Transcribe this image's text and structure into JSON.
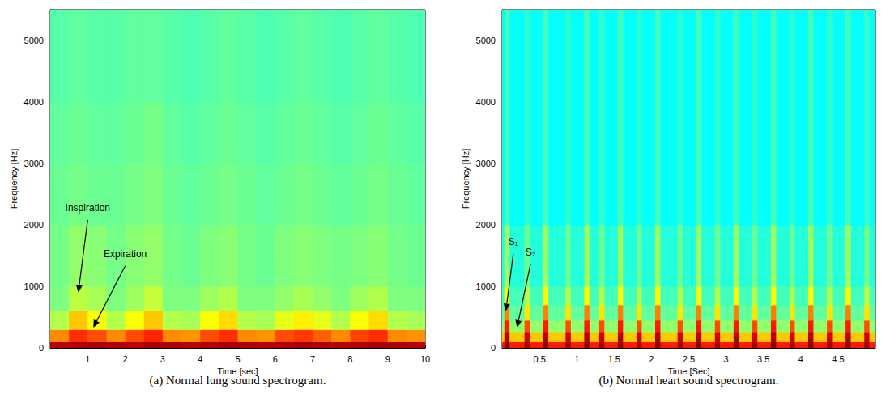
{
  "chart_data": [
    {
      "type": "heatmap",
      "title": "(a) Normal lung sound spectrogram.",
      "x_label": "Time [sec]",
      "y_label": "Frequency [Hz]",
      "xlim": [
        0,
        10
      ],
      "xticks": [
        1,
        2,
        3,
        4,
        5,
        6,
        7,
        8,
        9,
        10
      ],
      "ylim": [
        0,
        5500
      ],
      "yticks": [
        0,
        1000,
        2000,
        3000,
        4000,
        5000
      ],
      "grid": false,
      "clim": [
        0,
        100
      ],
      "x_bins": [
        0,
        0.5,
        1,
        1.5,
        2,
        2.5,
        3,
        3.5,
        4,
        4.5,
        5,
        5.5,
        6,
        6.5,
        7,
        7.5,
        8,
        8.5,
        9,
        9.5,
        10
      ],
      "y_bins": [
        0,
        100,
        300,
        600,
        1000,
        2000,
        3000,
        4000,
        5500
      ],
      "cells": [
        [
          94,
          95,
          96,
          95,
          94,
          96,
          95,
          94,
          95,
          96,
          95,
          94,
          95,
          96,
          95,
          94,
          95,
          96,
          95,
          94
        ],
        [
          74,
          83,
          80,
          74,
          80,
          84,
          74,
          73,
          80,
          83,
          74,
          73,
          80,
          82,
          78,
          74,
          81,
          83,
          74,
          73
        ],
        [
          55,
          68,
          62,
          55,
          62,
          68,
          55,
          54,
          62,
          66,
          55,
          54,
          60,
          64,
          60,
          55,
          62,
          66,
          55,
          54
        ],
        [
          50,
          56,
          54,
          50,
          53,
          57,
          50,
          50,
          53,
          55,
          50,
          50,
          52,
          54,
          52,
          50,
          53,
          55,
          50,
          50
        ],
        [
          49,
          52,
          51,
          49,
          51,
          52,
          49,
          48,
          50,
          51,
          49,
          48,
          50,
          51,
          50,
          49,
          50,
          51,
          49,
          48
        ],
        [
          48,
          49,
          48,
          48,
          49,
          50,
          48,
          47,
          48,
          49,
          48,
          47,
          48,
          49,
          48,
          47,
          48,
          49,
          48,
          47
        ],
        [
          47,
          48,
          47,
          47,
          48,
          49,
          47,
          46,
          47,
          48,
          47,
          46,
          47,
          48,
          47,
          46,
          47,
          48,
          47,
          46
        ],
        [
          46,
          47,
          46,
          46,
          47,
          47,
          46,
          45,
          46,
          47,
          46,
          45,
          46,
          47,
          46,
          45,
          46,
          47,
          46,
          45
        ]
      ],
      "annotations": [
        {
          "text": "Inspiration",
          "x": 1.0,
          "y": 2200,
          "arrow_x": 0.75,
          "arrow_y": 900
        },
        {
          "text": "Expiration",
          "x": 2.0,
          "y": 1450,
          "arrow_x": 1.15,
          "arrow_y": 330
        }
      ]
    },
    {
      "type": "heatmap",
      "title": "(b) Normal heart sound spectrogram.",
      "x_label": "Time [Sec]",
      "y_label": "Frequency [Hz]",
      "xlim": [
        0,
        5
      ],
      "xticks": [
        0.5,
        1,
        1.5,
        2,
        2.5,
        3,
        3.5,
        4,
        4.5
      ],
      "ylim": [
        0,
        5500
      ],
      "yticks": [
        0,
        1000,
        2000,
        3000,
        4000,
        5000
      ],
      "grid": false,
      "clim": [
        0,
        100
      ],
      "x_bins": [
        0,
        0.03,
        0.1,
        0.3,
        0.37,
        0.55,
        0.62,
        0.85,
        0.92,
        1.1,
        1.17,
        1.3,
        1.37,
        1.55,
        1.62,
        1.8,
        1.87,
        2.05,
        2.12,
        2.35,
        2.42,
        2.6,
        2.67,
        2.85,
        2.92,
        3.1,
        3.17,
        3.35,
        3.42,
        3.6,
        3.67,
        3.85,
        3.92,
        4.1,
        4.17,
        4.35,
        4.42,
        4.6,
        4.67,
        4.85,
        4.92,
        5.0
      ],
      "y_bins": [
        0,
        100,
        250,
        450,
        700,
        1000,
        2000,
        5500
      ],
      "cells": [
        [
          85,
          98,
          85,
          96,
          85,
          98,
          85,
          96,
          85,
          98,
          85,
          96,
          85,
          98,
          85,
          96,
          85,
          98,
          85,
          96,
          85,
          98,
          85,
          96,
          85,
          98,
          85,
          96,
          85,
          98,
          85,
          96,
          85,
          98,
          85,
          96,
          85,
          98,
          85,
          96,
          85
        ],
        [
          68,
          95,
          68,
          92,
          68,
          95,
          68,
          92,
          68,
          95,
          68,
          92,
          68,
          95,
          68,
          92,
          68,
          95,
          68,
          92,
          68,
          95,
          68,
          92,
          68,
          95,
          68,
          92,
          68,
          95,
          68,
          92,
          68,
          95,
          68,
          92,
          68,
          95,
          68,
          92,
          68
        ],
        [
          52,
          85,
          52,
          80,
          52,
          85,
          52,
          80,
          52,
          85,
          52,
          80,
          52,
          85,
          52,
          80,
          52,
          85,
          52,
          80,
          52,
          85,
          52,
          80,
          52,
          85,
          52,
          80,
          52,
          85,
          52,
          80,
          52,
          85,
          52,
          80,
          52,
          85,
          52,
          80,
          52
        ],
        [
          47,
          75,
          47,
          65,
          47,
          75,
          47,
          65,
          47,
          75,
          47,
          65,
          47,
          75,
          47,
          65,
          47,
          75,
          47,
          65,
          47,
          75,
          47,
          65,
          47,
          75,
          47,
          65,
          47,
          75,
          47,
          65,
          47,
          75,
          47,
          65,
          47,
          75,
          47,
          65,
          47
        ],
        [
          44,
          63,
          44,
          55,
          44,
          63,
          44,
          55,
          44,
          63,
          44,
          55,
          44,
          63,
          44,
          55,
          44,
          63,
          44,
          55,
          44,
          63,
          44,
          55,
          44,
          63,
          44,
          55,
          44,
          63,
          44,
          55,
          44,
          63,
          44,
          55,
          44,
          63,
          44,
          55,
          44
        ],
        [
          41,
          53,
          41,
          48,
          41,
          53,
          41,
          48,
          41,
          53,
          41,
          48,
          41,
          53,
          41,
          48,
          41,
          53,
          41,
          48,
          41,
          53,
          41,
          48,
          41,
          53,
          41,
          48,
          41,
          53,
          41,
          48,
          41,
          53,
          41,
          48,
          41,
          53,
          41,
          48,
          41
        ],
        [
          38,
          44,
          38,
          42,
          38,
          44,
          38,
          42,
          38,
          44,
          38,
          42,
          38,
          44,
          38,
          42,
          38,
          44,
          38,
          42,
          38,
          44,
          38,
          42,
          38,
          44,
          38,
          42,
          38,
          44,
          38,
          42,
          38,
          44,
          38,
          42,
          38,
          44,
          38,
          42,
          38
        ]
      ],
      "annotations": [
        {
          "text": "S₁",
          "x": 0.15,
          "y": 1650,
          "arrow_x": 0.05,
          "arrow_y": 600
        },
        {
          "text": "S₂",
          "x": 0.38,
          "y": 1480,
          "arrow_x": 0.2,
          "arrow_y": 330
        }
      ]
    }
  ]
}
